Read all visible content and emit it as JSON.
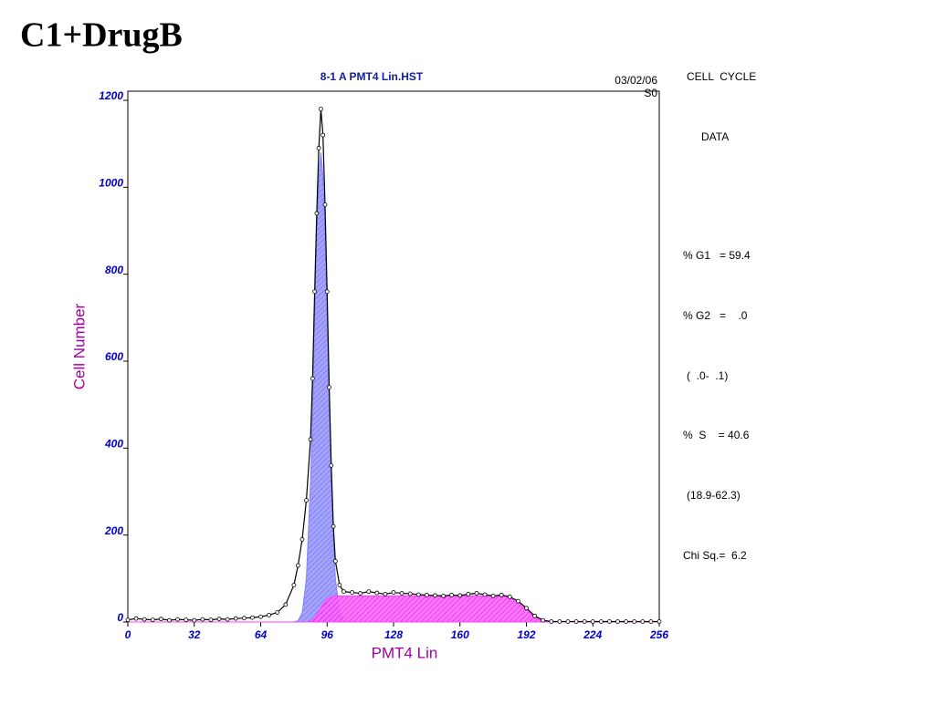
{
  "page_title": "C1+DrugB",
  "chart_data": {
    "type": "line",
    "title": "8-1 A PMT4 Lin.HST",
    "date": "03/02/06",
    "tag": "S0",
    "xlabel": "PMT4 Lin",
    "ylabel": "Cell Number",
    "xlim": [
      0,
      256
    ],
    "xticks": [
      0,
      32,
      64,
      96,
      128,
      160,
      192,
      224,
      256
    ],
    "ylim": [
      0,
      1200
    ],
    "yticks": [
      0,
      200,
      400,
      600,
      800,
      1000,
      1200
    ],
    "x": [
      0,
      4,
      8,
      12,
      16,
      20,
      24,
      28,
      32,
      36,
      40,
      44,
      48,
      52,
      56,
      60,
      64,
      68,
      72,
      76,
      80,
      82,
      84,
      86,
      88,
      89,
      90,
      91,
      92,
      93,
      94,
      95,
      96,
      97,
      98,
      99,
      100,
      102,
      104,
      108,
      112,
      116,
      120,
      124,
      128,
      132,
      136,
      140,
      144,
      148,
      152,
      156,
      160,
      164,
      168,
      172,
      176,
      180,
      184,
      188,
      192,
      196,
      200,
      204,
      208,
      212,
      216,
      220,
      224,
      228,
      232,
      236,
      240,
      244,
      248,
      252,
      256
    ],
    "series": [
      {
        "color": "#8080ff",
        "fill": true,
        "values": [
          0,
          0,
          0,
          0,
          0,
          0,
          0,
          0,
          0,
          0,
          0,
          0,
          0,
          0,
          0,
          0,
          0,
          0,
          0,
          0,
          0,
          3,
          21,
          99,
          319,
          495,
          697,
          889,
          1028,
          1080,
          1028,
          889,
          697,
          495,
          319,
          187,
          99,
          21,
          3,
          0,
          0,
          0,
          0,
          0,
          0,
          0,
          0,
          0,
          0,
          0,
          0,
          0,
          0,
          0,
          0,
          0,
          0,
          0,
          0,
          0,
          0,
          0,
          0,
          0,
          0,
          0,
          0,
          0,
          0,
          0,
          0,
          0,
          0,
          0,
          0,
          0,
          0
        ]
      },
      {
        "color": "#ff40ff",
        "fill": true,
        "values": [
          0,
          0,
          0,
          0,
          0,
          0,
          0,
          0,
          0,
          0,
          0,
          0,
          0,
          0,
          0,
          0,
          0,
          0,
          0,
          0,
          0,
          0,
          0,
          0,
          2,
          5,
          10,
          16,
          24,
          32,
          40,
          46,
          52,
          55,
          58,
          59,
          60,
          60,
          60,
          60,
          60,
          60,
          60,
          60,
          60,
          60,
          60,
          60,
          60,
          60,
          60,
          60,
          60,
          60,
          60,
          60,
          60,
          60,
          56,
          44,
          28,
          12,
          3,
          0,
          0,
          0,
          0,
          0,
          0,
          0,
          0,
          0,
          0,
          0,
          0,
          0,
          0
        ]
      },
      {
        "color": "#000000",
        "fill": false,
        "markers": true,
        "values": [
          5,
          8,
          6,
          5,
          7,
          4,
          6,
          5,
          4,
          6,
          5,
          7,
          6,
          8,
          9,
          10,
          12,
          16,
          22,
          40,
          85,
          130,
          190,
          280,
          420,
          560,
          760,
          940,
          1090,
          1180,
          1120,
          960,
          760,
          540,
          360,
          220,
          140,
          85,
          70,
          68,
          66,
          70,
          67,
          64,
          68,
          66,
          65,
          63,
          62,
          61,
          60,
          62,
          61,
          64,
          66,
          63,
          60,
          62,
          58,
          48,
          32,
          14,
          4,
          1,
          1,
          1,
          1,
          1,
          1,
          1,
          1,
          1,
          1,
          1,
          1,
          1,
          1
        ]
      }
    ],
    "side_panel": [
      "CELL  CYCLE",
      "DATA",
      "% G1   = 59.4",
      "% G2   =    .0",
      "(  .0-  .1)",
      "%  S    = 40.6",
      "(18.9-62.3)",
      "Chi Sq.=  6.2"
    ]
  }
}
